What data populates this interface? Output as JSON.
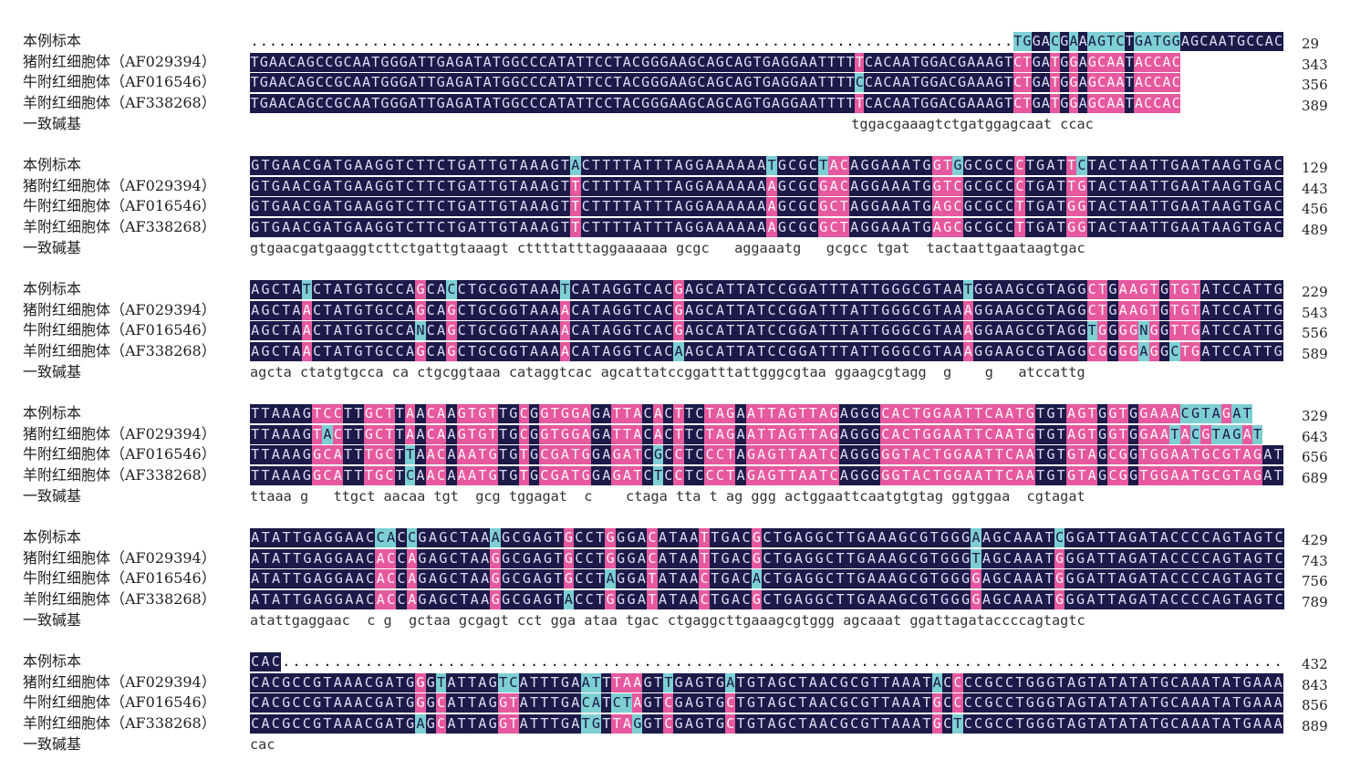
{
  "row_labels": [
    "本例标本",
    "猪附红细胞体（AF029394）",
    "牛附红细胞体（AF016546）",
    "羊附红细胞体（AF338268）",
    "一致碱基"
  ],
  "blocks": [
    {
      "seqs": [
        "..................................................................................TGGACGAAAGTCTGATGGAGCAATGCCAC",
        "TGAACAGCCGCAATGGGATTGAGATATGGCCCATATTCCTACGGGAAGCAGCAGTGAGGAATTTTTCACAATGGACGAAAGTCTGATGGAGCAATACCAC",
        "TGAACAGCCGCAATGGGATTGAGATATGGCCCATATTCCTACGGGAAGCAGCAGTGAGGAATTTTCCACAATGGACGAAAGTCTGATGGAGCAATACCAC",
        "TGAACAGCCGCAATGGGATTGAGATATGGCCCATATTCCTACGGGAAGCAGCAGTGAGGAATTTTTCACAATGGACGAAAGTCTGATGGAGCAATACCAC"
      ],
      "consensus": "                                                                        tggacgaaagtctgatggagcaat ccac",
      "numbers": [
        "29",
        "343",
        "356",
        "389"
      ]
    },
    {
      "seqs": [
        "GTGAACGATGAAGGTCTTCTGATTGTAAAGTACTTTTATTTAGGAAAAAATGCGCTACAGGAAATGGTGGCGCCCTGATTCTACTAATTGAATAAGTGAC",
        "GTGAACGATGAAGGTCTTCTGATTGTAAAGTTCTTTTATTTAGGAAAAAAAGCGCGACAGGAAATGGTCGCGCCCTGATTGTACTAATTGAATAAGTGAC",
        "GTGAACGATGAAGGTCTTCTGATTGTAAAGTTCTTTTATTTAGGAAAAAAAGCGCGCTAGGAAATGAGCGCGCCTTGATGGTACTAATTGAATAAGTGAC",
        "GTGAACGATGAAGGTCTTCTGATTGTAAAGTTCTTTTATTTAGGAAAAAAAGCGCGCTAGGAAATGAGCGCGCCTTGATGGTACTAATTGAATAAGTGAC"
      ],
      "consensus": "gtgaacgatgaaggtcttctgattgtaaagt cttttatttaggaaaaaa gcgc   aggaaatg   gcgcc tgat  tactaattgaataagtgac",
      "numbers": [
        "129",
        "443",
        "456",
        "489"
      ]
    },
    {
      "seqs": [
        "AGCTATCTATGTGCCAGCACCTGCGGTAAATCATAGGTCACGAGCATTATCCGGATTTATTGGGCGTAATGGAAGCGTAGGCTGAAGTGTGTATCCATTG",
        "AGCTAACTATGTGCCAGCAGCTGCGGTAAAACATAGGTCACGAGCATTATCCGGATTTATTGGGCGTAAAGGAAGCGTAGGCTGAAGTGTGTATCCATTG",
        "AGCTAACTATGTGCCANCAGCTGCGGTAAAACATAGGTCACGAGCATTATCCGGATTTATTGGGCGTAAAGGAAGCGTAGGTGGGGNGGTTGATCCATTG",
        "AGCTAACTATGTGCCAGCAGCTGCGGTAAAACATAGGTCACAAGCATTATCCGGATTTATTGGGCGTAAAGGAAGCGTAGGCGGGGAGGCTGATCCATTG"
      ],
      "consensus": "agcta ctatgtgcca ca ctgcggtaaa cataggtcac agcattatccggatttattgggcgtaa ggaagcgtagg  g    g   atccattg",
      "numbers": [
        "229",
        "543",
        "556",
        "589"
      ]
    },
    {
      "seqs": [
        "TTAAAGTCCTTGCTTAACAAGTGTTGCGGTGGAGATTACACTTCTAGAATTAGTTAGAGGGCACTGGAATTCAATGTGTAGTGGTGGAAACGTAGAT",
        "TTAAAGTACTTGCTTAACAAGTGTTGCGGTGGAGATTACACTTCTAGAATTAGTTAGAGGGCACTGGAATTCAATGTGTAGTGGTGGAATACGTAGAT",
        "TTAAAGGCATTTGCTTAACAAATGTGTGCGATGGAGATCGCCTCCCTAGAGTTAATCAGGGGGTACTGGAATTCAATGTGTAGCGGTGGAATGCGTAGAT",
        "TTAAAGGCATTTGCTCAACAAATGTGTGCGATGGAGATCTCCTCCCTAGAGTTAATCAGGGGGTACTGGAATTCAATGTGTAGCGGTGGAATGCGTAGAT"
      ],
      "consensus": "ttaaa g   ttgct aacaa tgt  gcg tggagat  c    ctaga tta t ag ggg actggaattcaatgtgtag ggtggaa  cgtagat",
      "numbers": [
        "329",
        "643",
        "656",
        "689"
      ]
    },
    {
      "seqs": [
        "ATATTGAGGAACCACCGAGCTAAAGCGAGTGCCTGGGACATAATTGACGCTGAGGCTTGAAAGCGTGGGAAGCAAATCGGATTAGATACCCCAGTAGTC",
        "ATATTGAGGAACACCAGAGCTAAGGCGAGTGCCTGGGACATAATTGACGCTGAGGCTTGAAAGCGTGGGTAGCAAATGGGATTAGATACCCCAGTAGTC",
        "ATATTGAGGAACACCAGAGCTAAGGCGAGTGCCTAGGATATAACTGACACTGAGGCTTGAAAGCGTGGGGAGCAAATGGGATTAGATACCCCAGTAGTC",
        "ATATTGAGGAACACCAGAGCTAAGGCGAGTACCTGGGATATAACTGACGCTGAGGCTTGAAAGCGTGGGGAGCAAATGGGATTAGATACCCCAGTAGTC"
      ],
      "consensus": "atattgaggaac  c g  gctaa gcgagt cct gga ataa tgac ctgaggcttgaaagcgtggg agcaaat ggattagataccccagtagtc",
      "numbers": [
        "429",
        "743",
        "756",
        "789"
      ]
    },
    {
      "seqs": [
        "CAC.................................................................................................",
        "CACGCCGTAAACGATGGGTATTAGTCATTTGAATTTAAGTTGAGTGATGTAGCTAACGCGTTAAATACCCCGCCTGGGTAGTATATATGCAAATATGAAA",
        "CACGCCGTAAACGATGGGCATTAGGTATTTGACATCTAGTCGAGTGCTGTAGCTAACGCGTTAAATGCCCCGCCTGGGTAGTATATATGCAAATATGAAA",
        "CACGCCGTAAACGATGAGCATTAGGTATTTGATGTTAGGTCGAGTGCTGTAGCTAACGCGTTAAATGCTCCGCCTGGGTAGTATATATGCAAATATGAAA"
      ],
      "consensus": "cac",
      "numbers": [
        "432",
        "843",
        "856",
        "889"
      ]
    }
  ]
}
